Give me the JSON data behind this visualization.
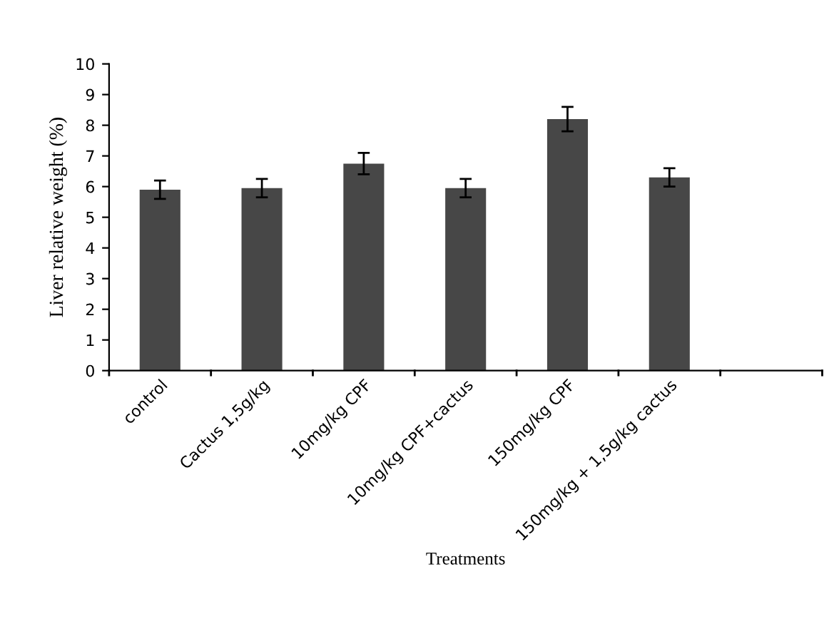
{
  "chart_data": {
    "type": "bar",
    "xlabel": "Treatments",
    "ylabel": "Liver relative weight (%)",
    "categories": [
      "control",
      "Cactus 1,5g/kg",
      "10mg/kg CPF",
      "10mg/kg CPF+cactus",
      "150mg/kg CPF",
      "150mg/kg + 1,5g/kg cactus",
      null
    ],
    "values": [
      5.9,
      5.95,
      6.75,
      5.95,
      8.2,
      6.3,
      null
    ],
    "errors": [
      0.3,
      0.3,
      0.35,
      0.3,
      0.4,
      0.3,
      null
    ],
    "color": "#474747",
    "ylim": [
      0,
      10
    ],
    "yticks": [
      0,
      1,
      2,
      3,
      4,
      5,
      6,
      7,
      8,
      9,
      10
    ],
    "grid": false,
    "legend": false
  }
}
